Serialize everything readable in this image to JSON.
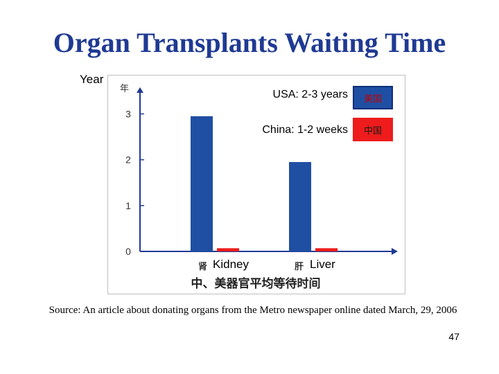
{
  "slide": {
    "title": "Organ Transplants Waiting Time",
    "source": "Source: An article about donating organs from the Metro newspaper online dated March, 29, 2006",
    "page_number": "47"
  },
  "chart_data": {
    "type": "bar",
    "ylabel": "Year",
    "ylabel_cn": "年",
    "categories": [
      "Kidney",
      "Liver"
    ],
    "categories_cn": [
      "肾",
      "肝"
    ],
    "series": [
      {
        "name": "USA: 2-3 years",
        "name_cn": "美国",
        "color": "#1f4fa3",
        "values": [
          2.95,
          1.95
        ]
      },
      {
        "name": "China: 1-2 weeks",
        "name_cn": "中国",
        "color": "#ee1c1c",
        "values": [
          0.07,
          0.07
        ]
      }
    ],
    "ylim": [
      0,
      3.4
    ],
    "yticks": [
      0,
      1,
      2,
      3
    ],
    "cn_title": "中、美器官平均等待时间",
    "legend_position": "top-right"
  }
}
